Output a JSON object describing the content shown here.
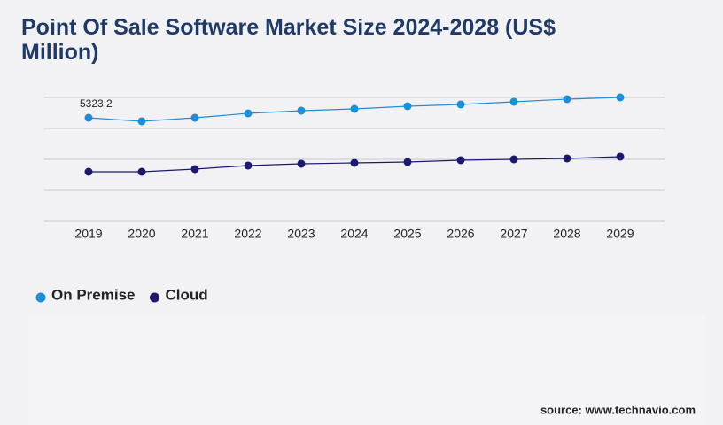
{
  "chart_data": {
    "type": "line",
    "title": "Point Of Sale Software Market Size 2024-2028 (US$ Million)",
    "categories": [
      "2019",
      "2020",
      "2021",
      "2022",
      "2023",
      "2024",
      "2025",
      "2026",
      "2027",
      "2028",
      "2029"
    ],
    "series": [
      {
        "name": "On Premise",
        "color": "#1b8fd8",
        "values": [
          5323.2,
          5142,
          5323,
          5551,
          5688,
          5779,
          5915,
          6006,
          6143,
          6279,
          6370
        ],
        "value_labels": [
          "5323.2",
          null,
          null,
          null,
          null,
          null,
          null,
          null,
          null,
          null,
          null
        ]
      },
      {
        "name": "Cloud",
        "color": "#1c1a6e",
        "values": [
          2548,
          2548,
          2685,
          2867,
          2958,
          3003,
          3049,
          3140,
          3185,
          3231,
          3322
        ]
      }
    ],
    "ylim": [
      0,
      6370
    ],
    "grid": true,
    "source": "source: www.technavio.com"
  }
}
